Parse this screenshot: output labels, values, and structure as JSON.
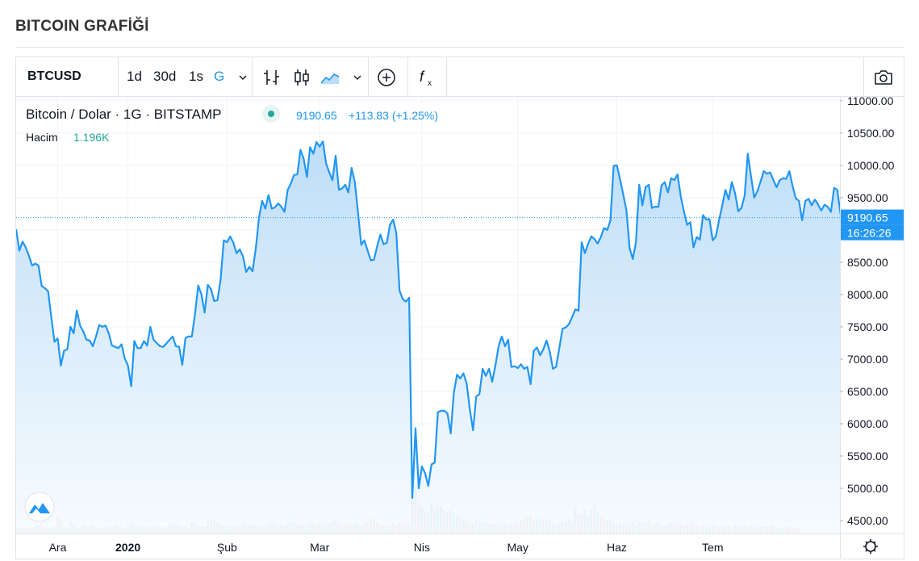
{
  "page": {
    "title": "BITCOIN GRAFİĞİ"
  },
  "toolbar": {
    "symbol": "BTCUSD",
    "intervals": [
      {
        "label": "1d",
        "active": false
      },
      {
        "label": "30d",
        "active": false
      },
      {
        "label": "1s",
        "active": false
      },
      {
        "label": "G",
        "active": true
      }
    ],
    "icons": [
      "chevron-down-icon",
      "bar-style-icon",
      "candle-style-icon",
      "area-style-icon",
      "chevron-down-icon",
      "add-compare-icon",
      "indicators-fx-icon",
      "camera-snapshot-icon"
    ]
  },
  "legend": {
    "title": "Bitcoin / Dolar · 1G · BITSTAMP",
    "last": "9190.65",
    "change": "+113.83 (+1.25%)",
    "volume_label": "Hacim",
    "volume_value": "1.196K"
  },
  "price_tag": {
    "value": "9190.65",
    "time": "16:26:26"
  },
  "colors": {
    "line": "#2196f3",
    "area_top": "#bbdcf7",
    "area_bottom": "#f6fbff",
    "vol_up": "#82c7bc",
    "vol_down": "#f0999a",
    "accent": "#2196f3",
    "green": "#26a69a"
  },
  "chart_data": {
    "type": "area",
    "title": "Bitcoin / Dolar · 1G · BITSTAMP",
    "x_tick_labels": [
      {
        "label": "Ara",
        "index": 13,
        "bold": false
      },
      {
        "label": "2020",
        "index": 35,
        "bold": true
      },
      {
        "label": "Şub",
        "index": 66,
        "bold": false
      },
      {
        "label": "Mar",
        "index": 95,
        "bold": false
      },
      {
        "label": "Nis",
        "index": 127,
        "bold": false
      },
      {
        "label": "May",
        "index": 157,
        "bold": false
      },
      {
        "label": "Haz",
        "index": 188,
        "bold": false
      },
      {
        "label": "Tem",
        "index": 218,
        "bold": false
      }
    ],
    "y_ticks": [
      "4500.00",
      "5000.00",
      "5500.00",
      "6000.00",
      "6500.00",
      "7000.00",
      "7500.00",
      "8000.00",
      "8500.00",
      "9000.00",
      "9500.00",
      "10000.00",
      "10500.00",
      "11000.00"
    ],
    "ylim": [
      4300,
      11060
    ],
    "last_value": 9190.65,
    "grid": true,
    "series": [
      {
        "name": "Bitcoin / Dolar",
        "values": [
          9010,
          8680,
          8820,
          8730,
          8600,
          8450,
          8480,
          8450,
          8130,
          8100,
          8050,
          7650,
          7270,
          7320,
          6900,
          7130,
          7150,
          7500,
          7400,
          7750,
          7520,
          7430,
          7300,
          7290,
          7200,
          7350,
          7530,
          7500,
          7520,
          7400,
          7210,
          7190,
          7170,
          7230,
          7010,
          6900,
          6580,
          7280,
          7170,
          7170,
          7280,
          7210,
          7500,
          7300,
          7250,
          7200,
          7190,
          7240,
          7300,
          7350,
          7200,
          7190,
          6910,
          7330,
          7350,
          7350,
          7710,
          8140,
          8000,
          7720,
          8150,
          8080,
          7900,
          7910,
          8230,
          8840,
          8810,
          8900,
          8800,
          8640,
          8700,
          8590,
          8350,
          8430,
          8360,
          8710,
          9190,
          9450,
          9330,
          9540,
          9330,
          9350,
          9410,
          9360,
          9280,
          9620,
          9720,
          9850,
          9860,
          10240,
          10100,
          9820,
          10280,
          10180,
          10360,
          10290,
          10370,
          10030,
          9890,
          9770,
          10150,
          9620,
          9640,
          9700,
          9580,
          9960,
          9740,
          9270,
          8770,
          8840,
          8680,
          8530,
          8540,
          8750,
          8930,
          8780,
          8800,
          9080,
          9160,
          8950,
          8060,
          7930,
          7890,
          7950,
          4850,
          5930,
          5000,
          5340,
          5230,
          5040,
          5370,
          5400,
          6180,
          6200,
          6200,
          6160,
          5850,
          6480,
          6760,
          6700,
          6780,
          6620,
          6220,
          5900,
          6420,
          6460,
          6850,
          6740,
          6850,
          6650,
          6900,
          7200,
          7350,
          7200,
          7300,
          6880,
          6890,
          6860,
          6920,
          6850,
          6880,
          6610,
          7130,
          7180,
          7060,
          7150,
          7290,
          7120,
          6850,
          6880,
          7170,
          7470,
          7490,
          7540,
          7650,
          7770,
          7750,
          8810,
          8640,
          8780,
          8900,
          8860,
          8790,
          8890,
          9030,
          9000,
          9150,
          9990,
          10000,
          9790,
          9550,
          9300,
          8720,
          8550,
          8810,
          9700,
          9380,
          9660,
          9700,
          9340,
          9360,
          9360,
          9690,
          9740,
          9580,
          9800,
          9770,
          9860,
          9520,
          9290,
          9080,
          9120,
          8730,
          8890,
          8850,
          9230,
          9160,
          9170,
          8840,
          8900,
          9150,
          9380,
          9620,
          9470,
          9740,
          9570,
          9290,
          9340,
          9530,
          10180,
          9830,
          9500,
          9600,
          9750,
          9910,
          9870,
          9890,
          9770,
          9660,
          9770,
          9800,
          9790,
          9910,
          9680,
          9490,
          9450,
          9150,
          9450,
          9480,
          9380,
          9470,
          9390,
          9300,
          9390,
          9360,
          9280,
          9650,
          9620,
          9250,
          9310,
          9220,
          9180,
          9120,
          9090,
          9040,
          9000,
          8940,
          9060,
          9130,
          9160,
          9050,
          9160,
          9240,
          9110,
          9070,
          9160,
          9060,
          9130,
          9076,
          9190.65
        ]
      }
    ],
    "volume_series": {
      "name": "Hacim",
      "last_value": "1.196K",
      "values": [
        9,
        7,
        8,
        10,
        7,
        8,
        11,
        12,
        14,
        9,
        8,
        7,
        10,
        24,
        18,
        9,
        8,
        16,
        15,
        9,
        8,
        11,
        10,
        12,
        13,
        9,
        8,
        7,
        9,
        10,
        8,
        11,
        10,
        9,
        8,
        13,
        18,
        14,
        10,
        9,
        8,
        9,
        10,
        11,
        12,
        10,
        9,
        8,
        13,
        12,
        14,
        10,
        9,
        11,
        8,
        16,
        14,
        12,
        10,
        9,
        18,
        20,
        17,
        16,
        14,
        12,
        11,
        13,
        10,
        9,
        11,
        15,
        13,
        12,
        14,
        11,
        10,
        13,
        12,
        14,
        18,
        15,
        13,
        12,
        11,
        14,
        15,
        16,
        13,
        12,
        12,
        14,
        16,
        13,
        12,
        14,
        13,
        15,
        14,
        16,
        18,
        15,
        13,
        14,
        16,
        12,
        14,
        13,
        12,
        15,
        18,
        22,
        20,
        16,
        14,
        13,
        12,
        11,
        14,
        12,
        16,
        15,
        14,
        13,
        55,
        68,
        45,
        38,
        32,
        30,
        42,
        36,
        40,
        38,
        32,
        28,
        34,
        29,
        25,
        22,
        20,
        18,
        16,
        15,
        20,
        18,
        16,
        15,
        14,
        13,
        12,
        14,
        15,
        13,
        12,
        16,
        17,
        14,
        18,
        20,
        22,
        25,
        19,
        20,
        21,
        18,
        17,
        20,
        15,
        12,
        14,
        16,
        18,
        22,
        16,
        38,
        26,
        28,
        34,
        24,
        32,
        40,
        30,
        25,
        22,
        18,
        20,
        16,
        14,
        15,
        13,
        12,
        14,
        16,
        13,
        17,
        15,
        16,
        18,
        14,
        13,
        15,
        12,
        11,
        14,
        16,
        15,
        13,
        12,
        11,
        14,
        15,
        13,
        12,
        10,
        11,
        13,
        12,
        14,
        11,
        9,
        10,
        12,
        11,
        8,
        13,
        12,
        11,
        10,
        9,
        12,
        14,
        11,
        10,
        9,
        10,
        11,
        12,
        9,
        8,
        7,
        9,
        10,
        8,
        9,
        7
      ],
      "up": [
        1,
        0,
        1,
        0,
        1,
        0,
        1,
        0,
        0,
        1,
        0,
        1,
        1,
        0,
        1,
        0,
        1,
        0,
        1,
        1,
        0,
        1,
        0,
        0,
        1,
        1,
        0,
        1,
        0,
        1,
        0,
        1,
        0,
        1,
        0,
        0,
        1,
        0,
        1,
        1,
        0,
        1,
        0,
        1,
        0,
        1,
        0,
        1,
        0,
        1,
        1,
        0,
        1,
        0,
        1,
        0,
        1,
        0,
        1,
        0,
        1,
        0,
        1,
        0,
        1,
        0,
        1,
        1,
        0,
        1,
        0,
        1,
        0,
        1,
        0,
        1,
        1,
        0,
        1,
        0,
        1,
        0,
        1,
        1,
        0,
        1,
        1,
        0,
        1,
        0,
        0,
        1,
        1,
        0,
        1,
        0,
        1,
        0,
        1,
        1,
        0,
        1,
        0,
        1,
        0,
        0,
        1,
        0,
        1,
        0,
        0,
        1,
        0,
        0,
        1,
        0,
        1,
        1,
        0,
        0,
        0,
        0,
        1,
        1,
        0,
        1,
        0,
        1,
        0,
        1,
        1,
        0,
        1,
        1,
        0,
        1,
        0,
        1,
        1,
        0,
        1,
        0,
        0,
        1,
        0,
        1,
        1,
        0,
        1,
        1,
        0,
        1,
        0,
        1,
        0,
        1,
        0,
        1,
        0,
        1,
        0,
        1,
        0,
        1,
        1,
        0,
        1,
        0,
        1,
        1,
        0,
        0,
        1,
        1,
        0,
        1,
        0,
        1,
        0,
        1,
        1,
        0,
        1,
        0,
        0,
        1,
        1,
        0,
        1,
        0,
        1,
        0,
        1,
        0,
        1,
        1,
        0,
        1,
        0,
        1,
        0,
        1,
        0,
        1,
        0,
        1,
        0,
        1,
        0,
        1,
        0,
        0,
        1,
        0,
        1,
        0,
        1,
        1,
        0,
        1,
        0,
        1,
        0,
        1,
        0,
        1,
        0,
        1,
        0,
        1,
        0,
        1,
        0,
        1,
        0,
        1,
        0,
        1,
        0,
        1,
        1
      ]
    }
  }
}
